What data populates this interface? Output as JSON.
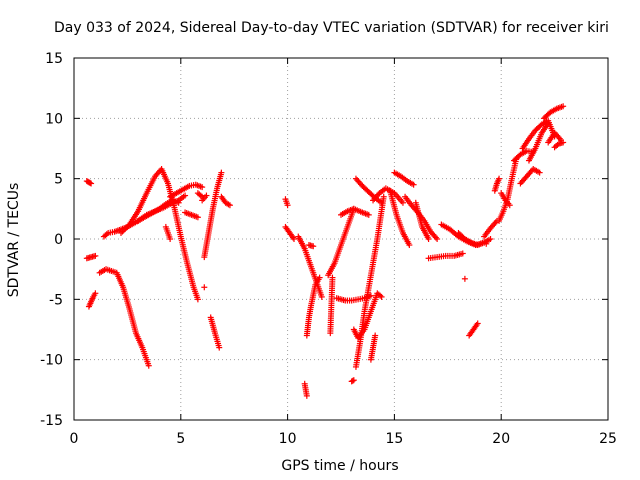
{
  "chart_data": {
    "type": "scatter",
    "title": "Day 033 of 2024, Sidereal Day-to-day VTEC variation (SDTVAR) for receiver kiri",
    "xlabel": "GPS time / hours",
    "ylabel": "SDTVAR / TECUs",
    "xlim": [
      0,
      25
    ],
    "ylim": [
      -15,
      15
    ],
    "xticks": [
      "0",
      "5",
      "10",
      "15",
      "20",
      "25"
    ],
    "yticks": [
      "15",
      "10",
      "5",
      "0",
      "-5",
      "-10",
      "-15"
    ],
    "grid": true,
    "marker": "plus",
    "color": "#ff0000",
    "series": [
      {
        "x": [
          0.6,
          0.7,
          0.8
        ],
        "y": [
          4.8,
          4.7,
          4.6
        ]
      },
      {
        "x": [
          0.6,
          0.8,
          1.0
        ],
        "y": [
          -1.6,
          -1.5,
          -1.4
        ]
      },
      {
        "x": [
          0.7,
          0.8,
          0.9,
          1.0
        ],
        "y": [
          -5.6,
          -5.2,
          -4.8,
          -4.5
        ]
      },
      {
        "x": [
          1.2,
          1.5,
          2.0,
          2.3,
          2.6,
          2.9,
          3.2,
          3.5
        ],
        "y": [
          -2.8,
          -2.5,
          -2.8,
          -4.0,
          -5.8,
          -7.8,
          -9.0,
          -10.5
        ]
      },
      {
        "x": [
          1.4,
          1.6,
          1.9,
          2.2,
          2.5,
          2.8,
          3.1,
          3.4,
          3.7,
          4.0,
          4.3,
          4.6,
          4.9
        ],
        "y": [
          0.2,
          0.5,
          0.6,
          0.8,
          1.0,
          1.3,
          1.6,
          1.9,
          2.2,
          2.5,
          2.9,
          3.2,
          3.0
        ]
      },
      {
        "x": [
          2.2,
          2.6,
          3.0,
          3.4,
          3.8,
          4.1,
          4.4,
          4.7,
          5.0,
          5.3,
          5.6,
          5.8
        ],
        "y": [
          0.5,
          1.2,
          2.3,
          3.8,
          5.2,
          5.8,
          4.6,
          2.6,
          0.2,
          -2.0,
          -4.0,
          -5.0
        ]
      },
      {
        "x": [
          3.0,
          3.4,
          3.8,
          4.2,
          4.6,
          4.9,
          5.2
        ],
        "y": [
          1.5,
          2.0,
          2.3,
          2.6,
          3.0,
          3.2,
          3.6
        ]
      },
      {
        "x": [
          4.5,
          4.8,
          5.1,
          5.4,
          5.7,
          6.0
        ],
        "y": [
          3.5,
          3.8,
          4.1,
          4.4,
          4.5,
          4.3
        ]
      },
      {
        "x": [
          4.3,
          4.4,
          4.5
        ],
        "y": [
          1.0,
          0.5,
          0.0
        ]
      },
      {
        "x": [
          5.2,
          5.5,
          5.8
        ],
        "y": [
          2.2,
          2.0,
          1.8
        ]
      },
      {
        "x": [
          5.8,
          6.0
        ],
        "y": [
          3.8,
          3.5
        ]
      },
      {
        "x": [
          6.1,
          6.3,
          6.5,
          6.7,
          6.9
        ],
        "y": [
          -1.5,
          0.5,
          2.5,
          4.2,
          5.5
        ]
      },
      {
        "x": [
          6.4,
          6.6,
          6.8
        ],
        "y": [
          -6.5,
          -7.8,
          -9.0
        ]
      },
      {
        "x": [
          6.0,
          6.2
        ],
        "y": [
          3.2,
          3.6
        ]
      },
      {
        "x": [
          6.1
        ],
        "y": [
          -4.0
        ]
      },
      {
        "x": [
          6.9,
          7.1,
          7.3
        ],
        "y": [
          3.5,
          3.0,
          2.8
        ]
      },
      {
        "x": [
          9.9,
          10.0
        ],
        "y": [
          3.3,
          2.8
        ]
      },
      {
        "x": [
          9.9,
          10.1,
          10.3
        ],
        "y": [
          1.0,
          0.5,
          0.0
        ]
      },
      {
        "x": [
          10.5,
          10.8,
          11.0,
          11.2,
          11.4,
          11.6
        ],
        "y": [
          0.2,
          -0.8,
          -1.8,
          -2.8,
          -3.8,
          -4.8
        ]
      },
      {
        "x": [
          10.9,
          11.0,
          11.1,
          11.3,
          11.5
        ],
        "y": [
          -8.0,
          -6.5,
          -5.5,
          -3.8,
          -3.2
        ]
      },
      {
        "x": [
          11.0,
          11.2
        ],
        "y": [
          -0.5,
          -0.6
        ]
      },
      {
        "x": [
          10.8,
          10.9
        ],
        "y": [
          -12.0,
          -13.0
        ]
      },
      {
        "x": [
          12.0,
          12.1
        ],
        "y": [
          -7.8,
          -3.2
        ]
      },
      {
        "x": [
          11.9,
          12.2,
          12.5,
          12.8,
          13.1
        ],
        "y": [
          -3.0,
          -2.0,
          -0.5,
          1.0,
          2.5
        ]
      },
      {
        "x": [
          12.5,
          12.8,
          13.1,
          13.5,
          13.8
        ],
        "y": [
          2.0,
          2.3,
          2.5,
          2.2,
          2.0
        ]
      },
      {
        "x": [
          12.3,
          12.7,
          13.0,
          13.3,
          13.6,
          13.9
        ],
        "y": [
          -4.9,
          -5.1,
          -5.1,
          -5.0,
          -4.9,
          -4.7
        ]
      },
      {
        "x": [
          13.1,
          13.3,
          13.6,
          13.9,
          14.2,
          14.4
        ],
        "y": [
          -7.5,
          -8.2,
          -7.5,
          -6.0,
          -4.5,
          -4.8
        ]
      },
      {
        "x": [
          13.0,
          13.1
        ],
        "y": [
          -11.8,
          -11.7
        ]
      },
      {
        "x": [
          13.2,
          13.4,
          13.6,
          13.9,
          14.2,
          14.5
        ],
        "y": [
          -10.6,
          -8.5,
          -6.0,
          -3.0,
          0.0,
          3.5
        ]
      },
      {
        "x": [
          13.9,
          14.0,
          14.1
        ],
        "y": [
          -10.0,
          -9.0,
          -8.0
        ]
      },
      {
        "x": [
          13.2,
          13.5,
          13.8,
          14.1,
          14.4
        ],
        "y": [
          5.0,
          4.4,
          3.9,
          3.4,
          3.0
        ]
      },
      {
        "x": [
          14.0,
          14.3,
          14.6,
          15.0,
          15.4
        ],
        "y": [
          3.2,
          3.8,
          4.2,
          3.8,
          3.0
        ]
      },
      {
        "x": [
          14.8,
          15.1,
          15.4,
          15.7
        ],
        "y": [
          4.0,
          2.0,
          0.5,
          -0.5
        ]
      },
      {
        "x": [
          15.0,
          15.3,
          15.6,
          15.9
        ],
        "y": [
          5.5,
          5.2,
          4.8,
          4.5
        ]
      },
      {
        "x": [
          15.5,
          15.8,
          16.1,
          16.4,
          16.7,
          17.0
        ],
        "y": [
          3.5,
          2.8,
          2.2,
          1.5,
          0.6,
          0.0
        ]
      },
      {
        "x": [
          16.0,
          16.3,
          16.6
        ],
        "y": [
          3.0,
          1.0,
          0.0
        ]
      },
      {
        "x": [
          16.6,
          17.0,
          17.4,
          17.8,
          18.2
        ],
        "y": [
          -1.6,
          -1.5,
          -1.4,
          -1.4,
          -1.2
        ]
      },
      {
        "x": [
          17.2,
          17.6,
          18.0,
          18.4,
          18.8,
          19.2
        ],
        "y": [
          1.2,
          0.8,
          0.2,
          -0.2,
          -0.5,
          -0.3
        ]
      },
      {
        "x": [
          18.0,
          18.3,
          18.6,
          18.9,
          19.2,
          19.5
        ],
        "y": [
          0.5,
          0.0,
          -0.3,
          -0.5,
          -0.3,
          0.0
        ]
      },
      {
        "x": [
          19.2,
          19.5,
          19.8
        ],
        "y": [
          0.2,
          0.9,
          1.5
        ]
      },
      {
        "x": [
          18.5,
          18.7,
          18.9
        ],
        "y": [
          -8.0,
          -7.5,
          -7.0
        ]
      },
      {
        "x": [
          18.3
        ],
        "y": [
          -3.3
        ]
      },
      {
        "x": [
          19.3
        ],
        "y": [
          -0.4
        ]
      },
      {
        "x": [
          19.7,
          19.8,
          19.9
        ],
        "y": [
          4.0,
          4.6,
          5.0
        ]
      },
      {
        "x": [
          19.9,
          20.1,
          20.3,
          20.5,
          20.7
        ],
        "y": [
          1.5,
          2.3,
          3.3,
          5.0,
          6.6
        ]
      },
      {
        "x": [
          20.0,
          20.2,
          20.4
        ],
        "y": [
          3.8,
          3.2,
          2.8
        ]
      },
      {
        "x": [
          20.6,
          20.9,
          21.2,
          21.5
        ],
        "y": [
          6.5,
          7.0,
          7.3,
          7.2
        ]
      },
      {
        "x": [
          20.9,
          21.2,
          21.5,
          21.8
        ],
        "y": [
          4.6,
          5.2,
          5.8,
          5.5
        ]
      },
      {
        "x": [
          21.0,
          21.3,
          21.6,
          21.9,
          22.2,
          22.5
        ],
        "y": [
          7.5,
          8.3,
          9.0,
          9.5,
          9.8,
          8.5
        ]
      },
      {
        "x": [
          21.3,
          21.6,
          21.9,
          22.2
        ],
        "y": [
          6.5,
          7.5,
          8.8,
          9.6
        ]
      },
      {
        "x": [
          22.2,
          22.5,
          22.8
        ],
        "y": [
          8.0,
          8.8,
          8.2
        ]
      },
      {
        "x": [
          22.0,
          22.3,
          22.6,
          22.9
        ],
        "y": [
          10.0,
          10.5,
          10.8,
          11.0
        ]
      },
      {
        "x": [
          22.5,
          22.7,
          22.9
        ],
        "y": [
          7.6,
          7.9,
          8.0
        ]
      }
    ]
  }
}
